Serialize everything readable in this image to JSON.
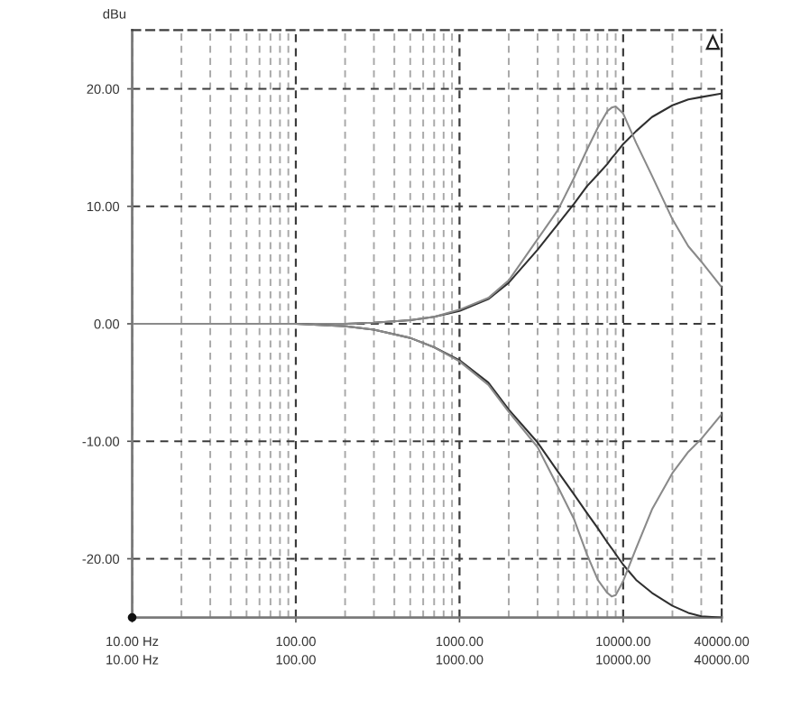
{
  "chart_data": {
    "type": "line",
    "ylabel": "dBu",
    "log": "x",
    "xlim": [
      10,
      40000
    ],
    "ylim": [
      -25,
      25
    ],
    "xticks": [
      {
        "value": 10,
        "label": "10.00 Hz"
      },
      {
        "value": 20,
        "label": null
      },
      {
        "value": 30,
        "label": null
      },
      {
        "value": 40,
        "label": null
      },
      {
        "value": 50,
        "label": null
      },
      {
        "value": 60,
        "label": null
      },
      {
        "value": 70,
        "label": null
      },
      {
        "value": 80,
        "label": null
      },
      {
        "value": 90,
        "label": null
      },
      {
        "value": 100,
        "label": "100.00"
      },
      {
        "value": 200,
        "label": null
      },
      {
        "value": 300,
        "label": null
      },
      {
        "value": 400,
        "label": null
      },
      {
        "value": 500,
        "label": null
      },
      {
        "value": 600,
        "label": null
      },
      {
        "value": 700,
        "label": null
      },
      {
        "value": 800,
        "label": null
      },
      {
        "value": 900,
        "label": null
      },
      {
        "value": 1000,
        "label": "1000.00"
      },
      {
        "value": 2000,
        "label": null
      },
      {
        "value": 3000,
        "label": null
      },
      {
        "value": 4000,
        "label": null
      },
      {
        "value": 5000,
        "label": null
      },
      {
        "value": 6000,
        "label": null
      },
      {
        "value": 7000,
        "label": null
      },
      {
        "value": 8000,
        "label": null
      },
      {
        "value": 9000,
        "label": null
      },
      {
        "value": 10000,
        "label": "10000.00"
      },
      {
        "value": 20000,
        "label": null
      },
      {
        "value": 30000,
        "label": null
      },
      {
        "value": 40000,
        "label": "40000.00"
      }
    ],
    "annotations": [
      "10.00 Hz",
      "100.00",
      "1000.00",
      "10000.00",
      "40000.00"
    ],
    "yticks": [
      {
        "value": 20,
        "label": "20.00"
      },
      {
        "value": 10,
        "label": "10.00"
      },
      {
        "value": 0,
        "label": "0.00"
      },
      {
        "value": -10,
        "label": "-10.00"
      },
      {
        "value": -20,
        "label": "-20.00"
      }
    ],
    "grid": true,
    "line_style": "solid",
    "x": [
      10,
      20,
      50,
      100,
      200,
      300,
      500,
      700,
      1000,
      1500,
      2000,
      3000,
      4000,
      5000,
      6000,
      7000,
      8000,
      8500,
      9000,
      10000,
      12000,
      15000,
      20000,
      25000,
      30000,
      40000
    ],
    "series": [
      {
        "color": "#303030",
        "values": [
          0,
          0,
          0,
          0,
          0,
          0.1,
          0.3,
          0.6,
          1.1,
          2.1,
          3.5,
          6.3,
          8.5,
          10.2,
          11.7,
          12.7,
          13.6,
          14.1,
          14.5,
          15.3,
          16.4,
          17.6,
          18.6,
          19.1,
          19.3,
          19.6
        ]
      },
      {
        "color": "#8a8a8a",
        "values": [
          0,
          0,
          0,
          0,
          0,
          0.1,
          0.3,
          0.6,
          1.2,
          2.2,
          3.7,
          7.2,
          9.7,
          12.4,
          14.8,
          16.7,
          18.1,
          18.4,
          18.5,
          17.9,
          15.4,
          12.6,
          8.9,
          6.6,
          5.3,
          3.1
        ]
      },
      {
        "color": "#303030",
        "values": [
          0,
          0,
          0,
          0,
          -0.2,
          -0.5,
          -1.2,
          -2.0,
          -3.1,
          -5.0,
          -7.3,
          -10.1,
          -12.6,
          -14.5,
          -16.1,
          -17.4,
          -18.6,
          -19.1,
          -19.6,
          -20.5,
          -21.8,
          -22.9,
          -24.0,
          -24.6,
          -24.9,
          -25
        ]
      },
      {
        "color": "#8a8a8a",
        "values": [
          0,
          0,
          0,
          0,
          -0.2,
          -0.5,
          -1.2,
          -2.0,
          -3.2,
          -5.2,
          -7.5,
          -10.5,
          -13.9,
          -16.6,
          -19.6,
          -21.8,
          -22.9,
          -23.2,
          -23.1,
          -21.9,
          -19.1,
          -15.8,
          -12.7,
          -10.9,
          -9.8,
          -7.7
        ]
      }
    ]
  }
}
